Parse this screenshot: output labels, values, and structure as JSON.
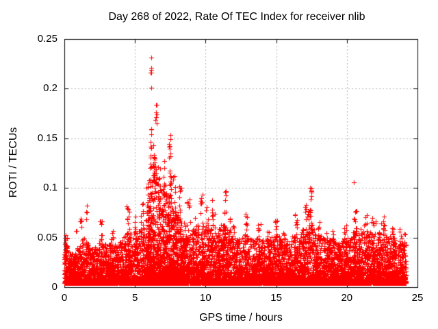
{
  "page": {
    "background_color": "#ffffff"
  },
  "chart_data": {
    "type": "scatter",
    "title": "Day 268 of 2022, Rate Of TEC Index for receiver nlib",
    "xlabel": "GPS time / hours",
    "ylabel": "ROTI / TECUs",
    "xlim": [
      0,
      25
    ],
    "ylim": [
      0,
      0.25
    ],
    "xticks": [
      0,
      5,
      10,
      15,
      20,
      25
    ],
    "xtick_labels": [
      "0",
      "5",
      "10",
      "15",
      "20",
      "25"
    ],
    "yticks": [
      0,
      0.05,
      0.1,
      0.15,
      0.2,
      0.25
    ],
    "ytick_labels": [
      "0",
      "0.05",
      "0.1",
      "0.15",
      "0.2",
      "0.25"
    ],
    "grid": true,
    "legend": "none",
    "marker": "plus",
    "marker_color": "#ff0000",
    "grid_color": "#b0b0b0",
    "axis_color": "#000000",
    "x_data_range": [
      0.0,
      24.2
    ],
    "baseline_min": 0.004,
    "density_exponent": 3.2,
    "n_background_points": 9500,
    "extra_region": {
      "range": [
        5.8,
        8.5
      ],
      "n": 700
    },
    "seed": 268,
    "envelope": [
      [
        0.0,
        0.05
      ],
      [
        0.3,
        0.038
      ],
      [
        0.7,
        0.034
      ],
      [
        1.0,
        0.042
      ],
      [
        1.4,
        0.052
      ],
      [
        1.8,
        0.04
      ],
      [
        2.2,
        0.04
      ],
      [
        2.6,
        0.048
      ],
      [
        3.0,
        0.042
      ],
      [
        3.4,
        0.046
      ],
      [
        3.8,
        0.045
      ],
      [
        4.2,
        0.05
      ],
      [
        4.6,
        0.058
      ],
      [
        5.0,
        0.055
      ],
      [
        5.4,
        0.062
      ],
      [
        5.8,
        0.07
      ],
      [
        6.0,
        0.09
      ],
      [
        6.2,
        0.11
      ],
      [
        6.4,
        0.12
      ],
      [
        6.6,
        0.115
      ],
      [
        6.8,
        0.1
      ],
      [
        7.0,
        0.105
      ],
      [
        7.2,
        0.095
      ],
      [
        7.4,
        0.1
      ],
      [
        7.6,
        0.09
      ],
      [
        7.8,
        0.082
      ],
      [
        8.0,
        0.078
      ],
      [
        8.3,
        0.07
      ],
      [
        8.6,
        0.062
      ],
      [
        8.9,
        0.065
      ],
      [
        9.2,
        0.058
      ],
      [
        9.5,
        0.065
      ],
      [
        9.8,
        0.062
      ],
      [
        10.1,
        0.06
      ],
      [
        10.5,
        0.065
      ],
      [
        10.9,
        0.052
      ],
      [
        11.3,
        0.065
      ],
      [
        11.6,
        0.06
      ],
      [
        12.0,
        0.05
      ],
      [
        12.4,
        0.048
      ],
      [
        12.8,
        0.055
      ],
      [
        13.2,
        0.048
      ],
      [
        13.6,
        0.05
      ],
      [
        14.0,
        0.048
      ],
      [
        14.4,
        0.048
      ],
      [
        14.8,
        0.052
      ],
      [
        15.2,
        0.052
      ],
      [
        15.6,
        0.048
      ],
      [
        16.0,
        0.05
      ],
      [
        16.4,
        0.056
      ],
      [
        16.8,
        0.058
      ],
      [
        17.2,
        0.06
      ],
      [
        17.5,
        0.065
      ],
      [
        17.8,
        0.055
      ],
      [
        18.2,
        0.052
      ],
      [
        18.6,
        0.048
      ],
      [
        19.0,
        0.048
      ],
      [
        19.4,
        0.044
      ],
      [
        19.8,
        0.05
      ],
      [
        20.2,
        0.05
      ],
      [
        20.6,
        0.058
      ],
      [
        21.0,
        0.055
      ],
      [
        21.4,
        0.058
      ],
      [
        21.8,
        0.055
      ],
      [
        22.2,
        0.055
      ],
      [
        22.6,
        0.056
      ],
      [
        23.0,
        0.052
      ],
      [
        23.4,
        0.05
      ],
      [
        23.8,
        0.046
      ],
      [
        24.2,
        0.05
      ]
    ],
    "spike_clusters": [
      [
        0.05,
        0.025,
        0.055,
        8,
        0.05
      ],
      [
        0.15,
        0.035,
        0.05,
        6,
        0.1
      ],
      [
        1.0,
        0.055,
        0.072,
        7,
        0.25
      ],
      [
        1.55,
        0.068,
        0.084,
        4,
        0.05
      ],
      [
        2.6,
        0.052,
        0.068,
        6,
        0.12
      ],
      [
        3.4,
        0.045,
        0.057,
        5,
        0.08
      ],
      [
        4.5,
        0.06,
        0.084,
        8,
        0.12
      ],
      [
        5.05,
        0.055,
        0.075,
        6,
        0.1
      ],
      [
        5.5,
        0.06,
        0.085,
        7,
        0.12
      ],
      [
        5.9,
        0.08,
        0.108,
        8,
        0.1
      ],
      [
        6.14,
        0.215,
        0.225,
        6,
        0.025
      ],
      [
        6.14,
        0.231,
        0.232,
        1,
        0.005
      ],
      [
        6.14,
        0.2,
        0.203,
        1,
        0.005
      ],
      [
        6.14,
        0.14,
        0.162,
        6,
        0.04
      ],
      [
        6.3,
        0.12,
        0.148,
        8,
        0.06
      ],
      [
        6.5,
        0.165,
        0.184,
        8,
        0.05
      ],
      [
        6.45,
        0.1,
        0.14,
        9,
        0.08
      ],
      [
        6.1,
        0.1,
        0.135,
        8,
        0.06
      ],
      [
        6.7,
        0.095,
        0.125,
        7,
        0.1
      ],
      [
        7.05,
        0.09,
        0.128,
        9,
        0.12
      ],
      [
        7.45,
        0.115,
        0.158,
        11,
        0.08
      ],
      [
        7.5,
        0.09,
        0.115,
        7,
        0.1
      ],
      [
        7.8,
        0.085,
        0.112,
        7,
        0.1
      ],
      [
        8.2,
        0.085,
        0.103,
        6,
        0.08
      ],
      [
        8.75,
        0.065,
        0.09,
        7,
        0.15
      ],
      [
        9.3,
        0.055,
        0.072,
        5,
        0.1
      ],
      [
        9.7,
        0.07,
        0.095,
        7,
        0.1
      ],
      [
        10.1,
        0.06,
        0.082,
        6,
        0.08
      ],
      [
        10.55,
        0.065,
        0.089,
        7,
        0.1
      ],
      [
        11.0,
        0.05,
        0.065,
        5,
        0.1
      ],
      [
        11.4,
        0.085,
        0.097,
        5,
        0.06
      ],
      [
        11.35,
        0.055,
        0.085,
        8,
        0.1
      ],
      [
        11.7,
        0.05,
        0.07,
        5,
        0.1
      ],
      [
        12.0,
        0.05,
        0.062,
        4,
        0.08
      ],
      [
        12.9,
        0.06,
        0.074,
        6,
        0.08
      ],
      [
        13.8,
        0.054,
        0.064,
        5,
        0.1
      ],
      [
        14.4,
        0.048,
        0.06,
        4,
        0.1
      ],
      [
        15.0,
        0.057,
        0.067,
        6,
        0.12
      ],
      [
        15.6,
        0.048,
        0.06,
        4,
        0.1
      ],
      [
        16.4,
        0.06,
        0.0755,
        7,
        0.12
      ],
      [
        17.1,
        0.065,
        0.089,
        7,
        0.1
      ],
      [
        17.45,
        0.085,
        0.102,
        7,
        0.07
      ],
      [
        17.35,
        0.07,
        0.088,
        7,
        0.1
      ],
      [
        18.0,
        0.05,
        0.066,
        5,
        0.1
      ],
      [
        18.6,
        0.045,
        0.058,
        4,
        0.1
      ],
      [
        19.0,
        0.048,
        0.059,
        5,
        0.12
      ],
      [
        19.9,
        0.052,
        0.065,
        5,
        0.1
      ],
      [
        20.52,
        0.105,
        0.107,
        1,
        0.005
      ],
      [
        20.6,
        0.065,
        0.08,
        7,
        0.12
      ],
      [
        21.2,
        0.055,
        0.0755,
        8,
        0.25
      ],
      [
        21.9,
        0.06,
        0.072,
        6,
        0.15
      ],
      [
        22.55,
        0.058,
        0.0732,
        7,
        0.15
      ],
      [
        23.2,
        0.05,
        0.065,
        5,
        0.1
      ],
      [
        23.8,
        0.048,
        0.062,
        4,
        0.08
      ],
      [
        24.1,
        0.04,
        0.055,
        4,
        0.06
      ]
    ]
  }
}
